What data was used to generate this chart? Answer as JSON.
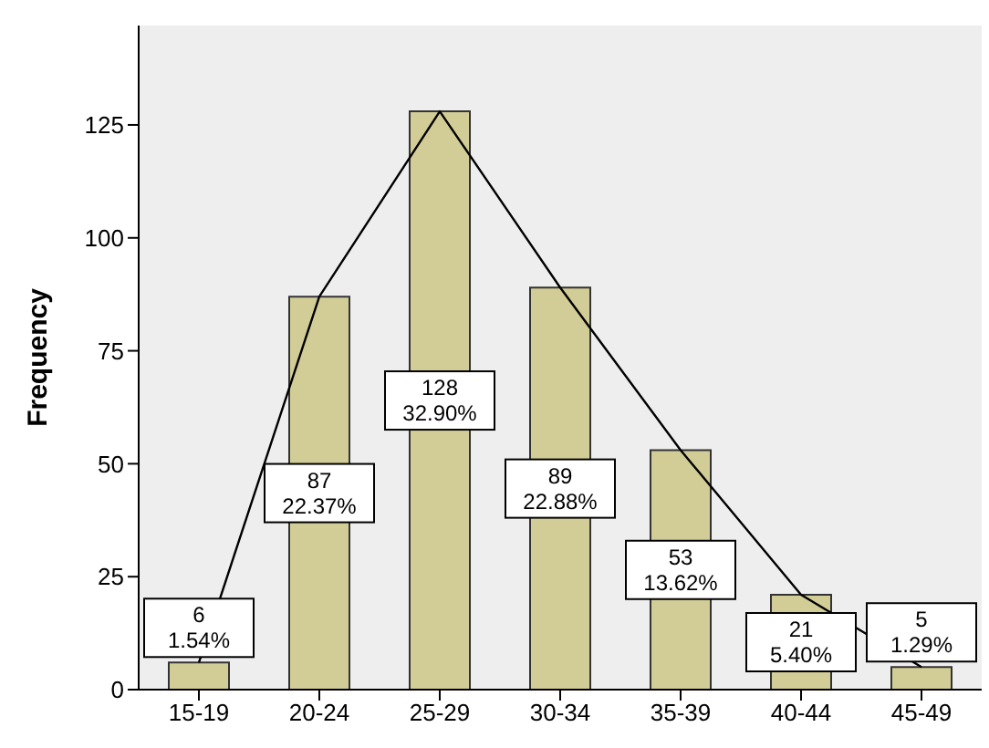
{
  "chart_data": {
    "type": "bar",
    "ylabel": "Frequency",
    "categories": [
      "15-19",
      "20-24",
      "25-29",
      "30-34",
      "35-39",
      "40-44",
      "45-49"
    ],
    "series": [
      {
        "color": "#d2cd96",
        "values": [
          6,
          87,
          128,
          89,
          53,
          21,
          5
        ],
        "value_labels": [
          "6\n1.54%",
          "87\n22.37%",
          "128\n32.90%",
          "89\n22.88%",
          "53\n13.62%",
          "21\n5.40%",
          "5\n1.29%"
        ]
      },
      {
        "type": "line",
        "color": "#000000",
        "values": [
          6,
          87,
          128,
          89,
          53,
          21,
          5
        ]
      }
    ],
    "ylim": [
      0,
      147
    ],
    "yticks": [
      0,
      25,
      50,
      75,
      100,
      125
    ],
    "grid": false,
    "legend": false,
    "marker": "none"
  }
}
